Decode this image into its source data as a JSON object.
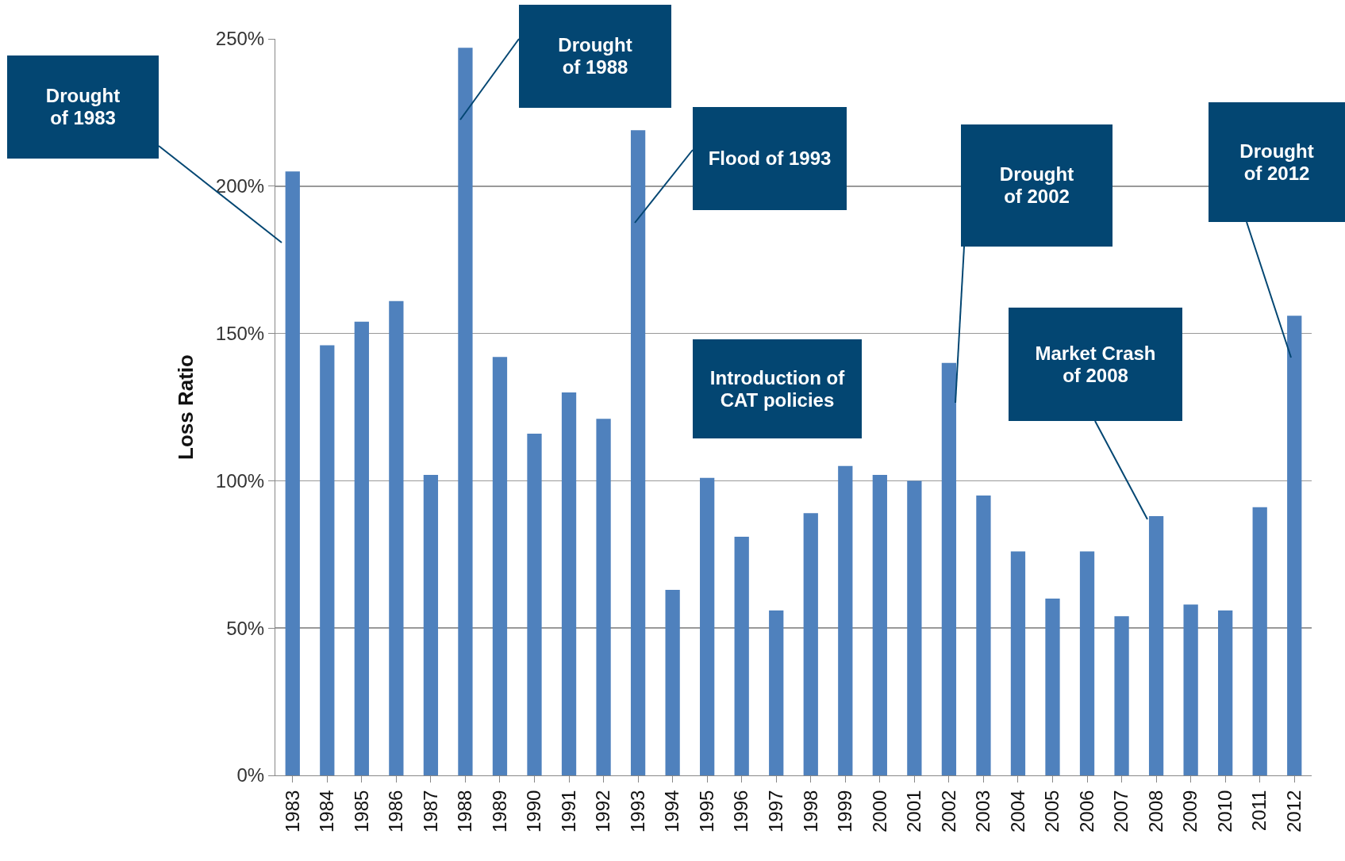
{
  "chart_data": {
    "type": "bar",
    "ylabel": "Loss Ratio",
    "categories": [
      "1983",
      "1984",
      "1985",
      "1986",
      "1987",
      "1988",
      "1989",
      "1990",
      "1991",
      "1992",
      "1993",
      "1994",
      "1995",
      "1996",
      "1997",
      "1998",
      "1999",
      "2000",
      "2001",
      "2002",
      "2003",
      "2004",
      "2005",
      "2006",
      "2007",
      "2008",
      "2009",
      "2010",
      "2011",
      "2012"
    ],
    "values": [
      205,
      146,
      154,
      161,
      102,
      247,
      142,
      116,
      130,
      121,
      219,
      63,
      101,
      81,
      56,
      89,
      105,
      102,
      100,
      140,
      95,
      76,
      60,
      76,
      54,
      88,
      58,
      56,
      91,
      156
    ],
    "color": "#4f81bd",
    "ylim": [
      0,
      250
    ],
    "yticks": [
      {
        "value": 0,
        "label": "0%"
      },
      {
        "value": 50,
        "label": "50%"
      },
      {
        "value": 100,
        "label": "100%"
      },
      {
        "value": 150,
        "label": "150%"
      },
      {
        "value": 200,
        "label": "200%"
      },
      {
        "value": 250,
        "label": "250%"
      }
    ],
    "grid": "y",
    "annotations": [
      "Drought of 1983",
      "Drought of 1988",
      "Flood of 1993",
      "Introduction of CAT policies",
      "Drought of 2002",
      "Market Crash of 2008",
      "Drought of 2012"
    ]
  }
}
